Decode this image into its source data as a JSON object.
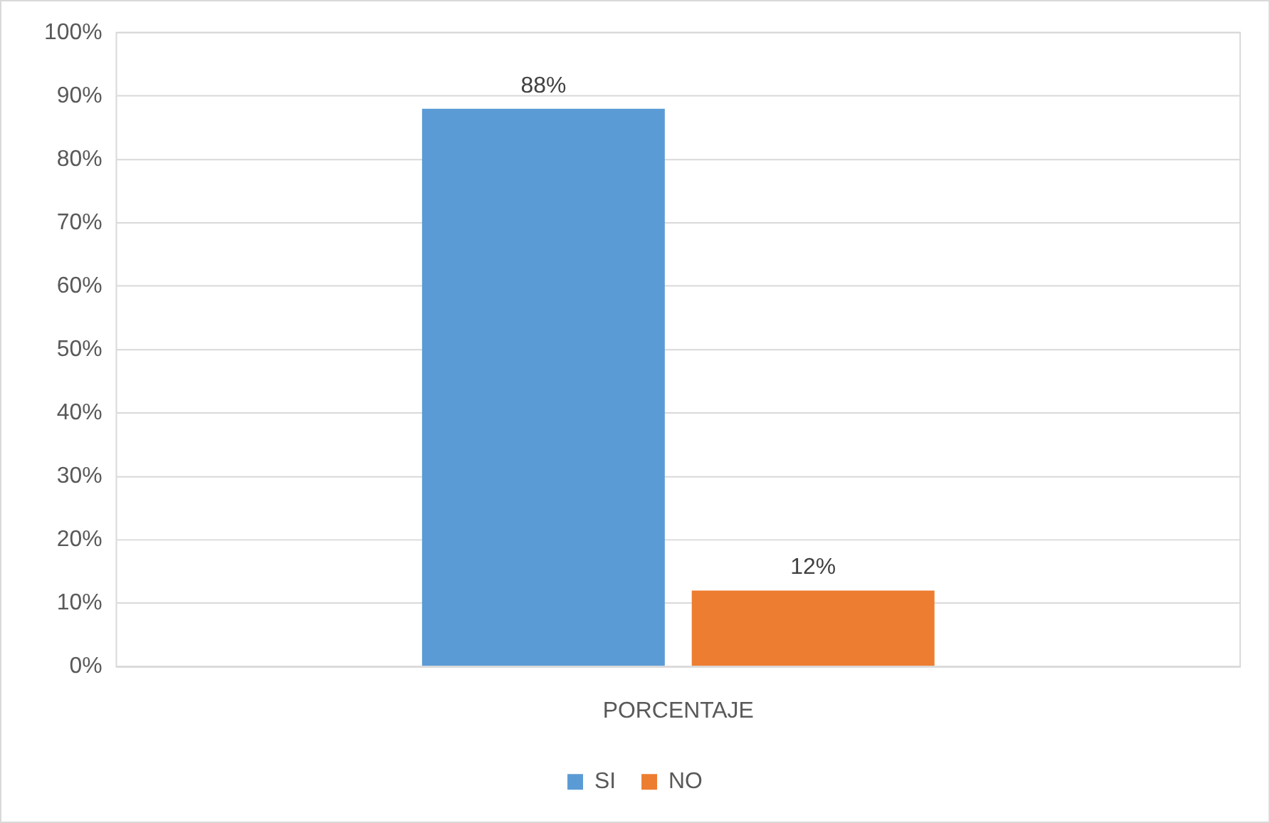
{
  "chart_data": {
    "type": "bar",
    "categories": [
      "PORCENTAJE"
    ],
    "series": [
      {
        "name": "SI",
        "color": "#5b9bd5",
        "values": [
          88
        ],
        "value_labels": [
          "88%"
        ]
      },
      {
        "name": "NO",
        "color": "#ed7d31",
        "values": [
          12
        ],
        "value_labels": [
          "12%"
        ]
      }
    ],
    "ylim": [
      0,
      100
    ],
    "yticks": [
      {
        "value": 0,
        "label": "0%"
      },
      {
        "value": 10,
        "label": "10%"
      },
      {
        "value": 20,
        "label": "20%"
      },
      {
        "value": 30,
        "label": "30%"
      },
      {
        "value": 40,
        "label": "40%"
      },
      {
        "value": 50,
        "label": "50%"
      },
      {
        "value": 60,
        "label": "60%"
      },
      {
        "value": 70,
        "label": "70%"
      },
      {
        "value": 80,
        "label": "80%"
      },
      {
        "value": 90,
        "label": "90%"
      },
      {
        "value": 100,
        "label": "100%"
      }
    ],
    "grid": "y",
    "legend": "bottom"
  }
}
